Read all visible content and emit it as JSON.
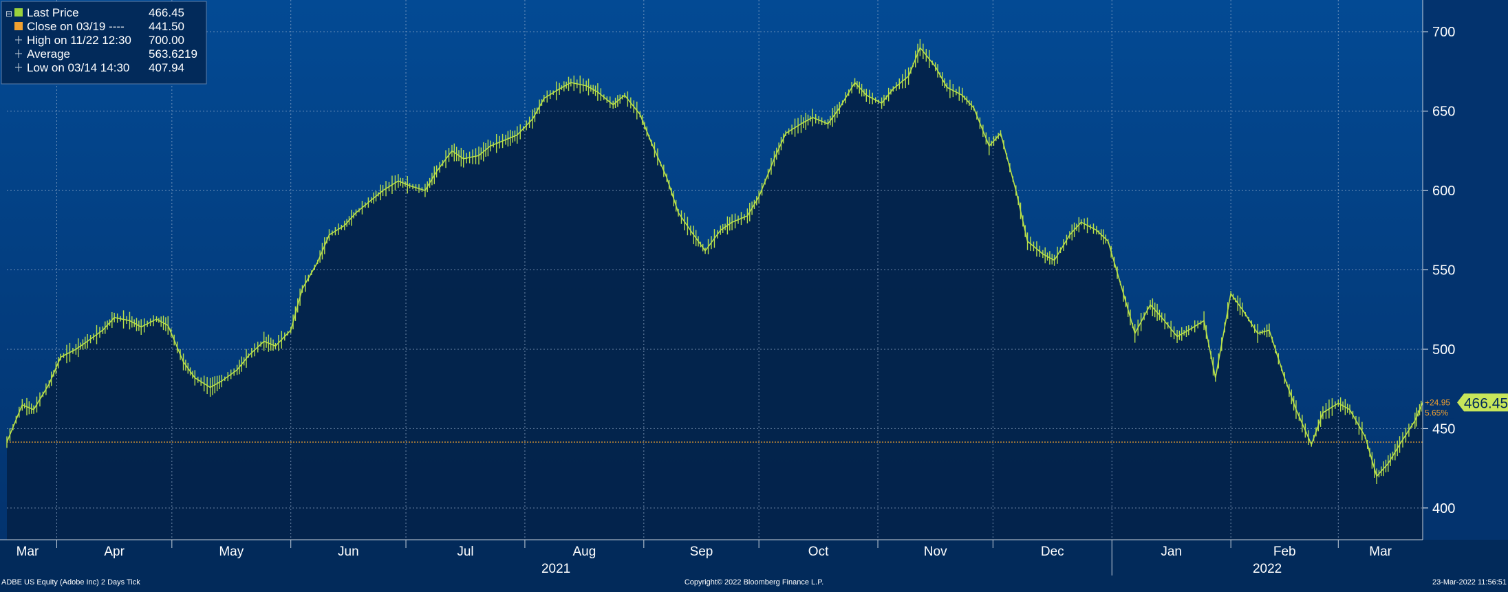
{
  "legend": {
    "rows": [
      {
        "label": "Last Price",
        "value": "466.45",
        "marker": "square",
        "color": "#9bd23c"
      },
      {
        "label": "Close on 03/19 ----",
        "value": "441.50",
        "marker": "square",
        "color": "#f0a030"
      },
      {
        "label": "High on 11/22 12:30",
        "value": "700.00",
        "marker": "tick",
        "color": "#c8d2dc"
      },
      {
        "label": "Average",
        "value": "563.6219",
        "marker": "tick",
        "color": "#c8d2dc"
      },
      {
        "label": "Low on 03/14 14:30",
        "value": "407.94",
        "marker": "tick",
        "color": "#c8d2dc"
      }
    ]
  },
  "price_tag": {
    "value": "466.45",
    "change": "+24.95",
    "pct": "5.65%"
  },
  "footer": {
    "left": "ADBE US Equity (Adobe Inc) 2 Days  Tick",
    "center": "Copyright© 2022 Bloomberg Finance L.P.",
    "right": "23-Mar-2022 11:56:51"
  },
  "colors": {
    "upper_bg": "#034a94",
    "lower_bg": "#03275a",
    "area_fill": "#03234a",
    "line": "#b8e04a",
    "ref_line": "#f0a030",
    "grid": "#9db3cf",
    "text": "#ffffff",
    "tag_bg": "#c8e65a"
  },
  "chart_data": {
    "type": "line",
    "title": "",
    "series_name": "Last Price",
    "ylim": [
      380,
      720
    ],
    "yticks": [
      400,
      450,
      500,
      550,
      600,
      650,
      700
    ],
    "reference_close": 441.5,
    "grid": true,
    "legend_position": "top-left",
    "month_labels": [
      "Mar",
      "Apr",
      "May",
      "Jun",
      "Jul",
      "Aug",
      "Sep",
      "Oct",
      "Nov",
      "Dec",
      "Jan",
      "Feb",
      "Mar"
    ],
    "year_labels": [
      "2021",
      "2022"
    ],
    "x": [
      "2021-03-19",
      "2021-03-23",
      "2021-03-26",
      "2021-03-30",
      "2021-04-02",
      "2021-04-06",
      "2021-04-09",
      "2021-04-13",
      "2021-04-16",
      "2021-04-20",
      "2021-04-23",
      "2021-04-27",
      "2021-04-30",
      "2021-05-04",
      "2021-05-07",
      "2021-05-11",
      "2021-05-14",
      "2021-05-18",
      "2021-05-21",
      "2021-05-25",
      "2021-05-28",
      "2021-06-01",
      "2021-06-04",
      "2021-06-08",
      "2021-06-11",
      "2021-06-15",
      "2021-06-18",
      "2021-06-22",
      "2021-06-25",
      "2021-06-29",
      "2021-07-02",
      "2021-07-06",
      "2021-07-09",
      "2021-07-13",
      "2021-07-16",
      "2021-07-20",
      "2021-07-23",
      "2021-07-27",
      "2021-07-30",
      "2021-08-03",
      "2021-08-06",
      "2021-08-10",
      "2021-08-13",
      "2021-08-17",
      "2021-08-20",
      "2021-08-24",
      "2021-08-27",
      "2021-08-31",
      "2021-09-03",
      "2021-09-07",
      "2021-09-10",
      "2021-09-14",
      "2021-09-17",
      "2021-09-21",
      "2021-09-24",
      "2021-09-28",
      "2021-10-01",
      "2021-10-05",
      "2021-10-08",
      "2021-10-12",
      "2021-10-15",
      "2021-10-19",
      "2021-10-22",
      "2021-10-26",
      "2021-10-29",
      "2021-11-02",
      "2021-11-05",
      "2021-11-09",
      "2021-11-12",
      "2021-11-16",
      "2021-11-19",
      "2021-11-23",
      "2021-11-26",
      "2021-11-30",
      "2021-12-03",
      "2021-12-07",
      "2021-12-10",
      "2021-12-14",
      "2021-12-17",
      "2021-12-21",
      "2021-12-24",
      "2021-12-28",
      "2021-12-31",
      "2022-01-04",
      "2022-01-07",
      "2022-01-11",
      "2022-01-14",
      "2022-01-18",
      "2022-01-21",
      "2022-01-25",
      "2022-01-28",
      "2022-02-01",
      "2022-02-04",
      "2022-02-08",
      "2022-02-11",
      "2022-02-15",
      "2022-02-18",
      "2022-02-22",
      "2022-02-25",
      "2022-03-01",
      "2022-03-04",
      "2022-03-08",
      "2022-03-11",
      "2022-03-14",
      "2022-03-17",
      "2022-03-21",
      "2022-03-23"
    ],
    "y": [
      441.5,
      465,
      462,
      478,
      495,
      500,
      505,
      512,
      520,
      518,
      514,
      519,
      515,
      492,
      482,
      476,
      480,
      487,
      496,
      505,
      502,
      512,
      538,
      555,
      572,
      578,
      586,
      594,
      600,
      606,
      603,
      600,
      612,
      625,
      620,
      622,
      628,
      632,
      635,
      645,
      658,
      664,
      668,
      666,
      662,
      654,
      660,
      648,
      630,
      608,
      586,
      572,
      562,
      575,
      580,
      584,
      596,
      620,
      636,
      642,
      646,
      642,
      652,
      668,
      660,
      655,
      664,
      672,
      690,
      678,
      665,
      660,
      652,
      628,
      636,
      600,
      568,
      560,
      556,
      572,
      580,
      575,
      568,
      535,
      510,
      528,
      520,
      508,
      512,
      518,
      482,
      535,
      525,
      510,
      512,
      482,
      462,
      440,
      460,
      466,
      462,
      445,
      420,
      428,
      440,
      455,
      466.45
    ],
    "high": {
      "label": "High on 11/22 12:30",
      "value": 700.0
    },
    "low": {
      "label": "Low on 03/14 14:30",
      "value": 407.94
    },
    "average": 563.6219
  }
}
